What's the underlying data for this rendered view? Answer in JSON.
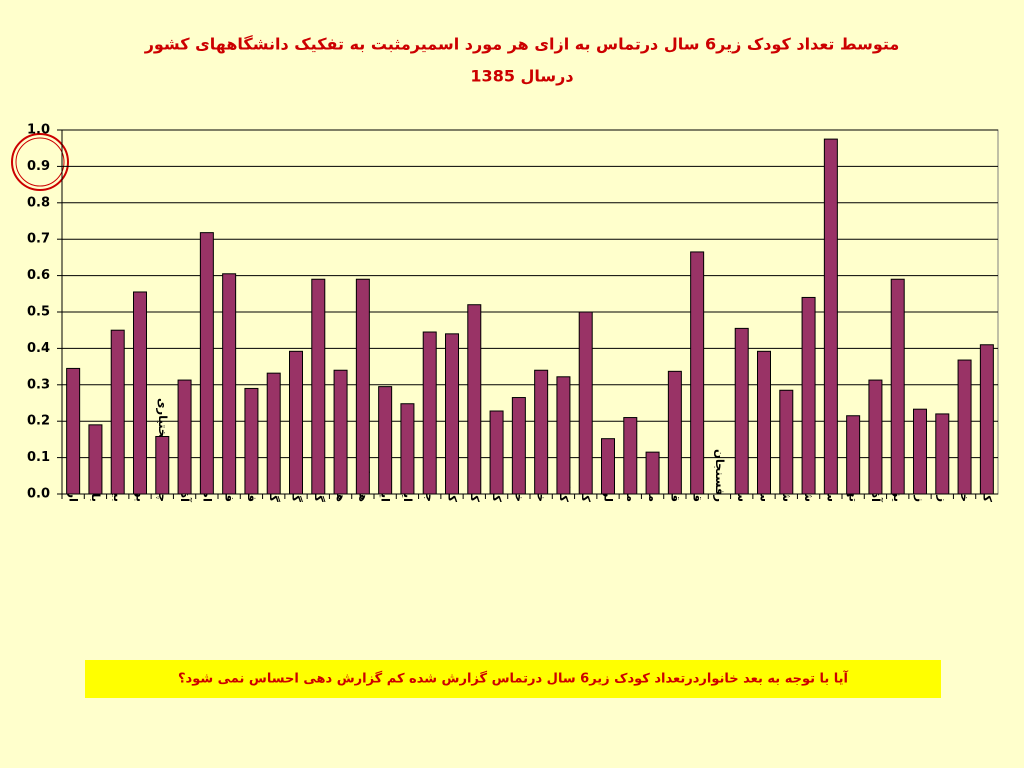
{
  "chart_data": {
    "type": "bar",
    "title": "متوسط تعداد کودک  زیر6 سال درتماس به ازای هر مورد اسمیرمثبت به تفکیک دانشگاههای کشور",
    "subtitle": "درسال 1385",
    "categories": [
      "اردبیل",
      "بابل",
      "بیرجند",
      "بوشهر",
      "چهارمحال بختیاری",
      "آذربایجان شرقی",
      "اصفهان",
      "فارس",
      "فسا",
      "گیلان",
      "گلستان",
      "گناباد",
      "همدان",
      "هرمزگان",
      "ایلام",
      "ایران",
      "جهرم",
      "کاشان",
      "کرمان",
      "کرمانشاه",
      "خراسان",
      "خوزستان",
      "کهگیلویه و بویراحمد",
      "کردستان",
      "لرستان",
      "مرکزی",
      "مازندران",
      "قزوین",
      "قم",
      "رفسنجان",
      "سبزوار",
      "سمنان",
      "شهید بهشتی",
      "شاهرود",
      "سیستان وبلوچستان",
      "تهران",
      "آذربایجان غربی",
      "یزد",
      "زابل",
      "زنجان",
      "خراسان شمالی",
      "کل کشور"
    ],
    "values": [
      0.345,
      0.19,
      0.45,
      0.555,
      0.158,
      0.313,
      0.718,
      0.605,
      0.29,
      0.332,
      0.392,
      0.59,
      0.34,
      0.59,
      0.295,
      0.248,
      0.445,
      0.44,
      0.52,
      0.228,
      0.265,
      0.34,
      0.322,
      0.5,
      0.152,
      0.21,
      0.115,
      0.337,
      0.665,
      null,
      0.455,
      0.392,
      0.285,
      0.54,
      0.975,
      0.215,
      0.313,
      0.59,
      0.233,
      0.22,
      0.368,
      0.41
    ],
    "color": "#993366",
    "ylim": [
      0,
      1
    ],
    "yticks": [
      {
        "value": 0,
        "label": "0.0"
      },
      0.1,
      0.2,
      0.3,
      0.4,
      0.5,
      0.6,
      0.7,
      0.8,
      0.9,
      {
        "value": 1,
        "label": "1.0"
      }
    ],
    "grid": true,
    "annotation": "آیا با توجه به بعد خانواردرتعداد کودک زیر6 سال درتماس گزارش شده کم گزارش دهی احساس نمی شود؟"
  }
}
